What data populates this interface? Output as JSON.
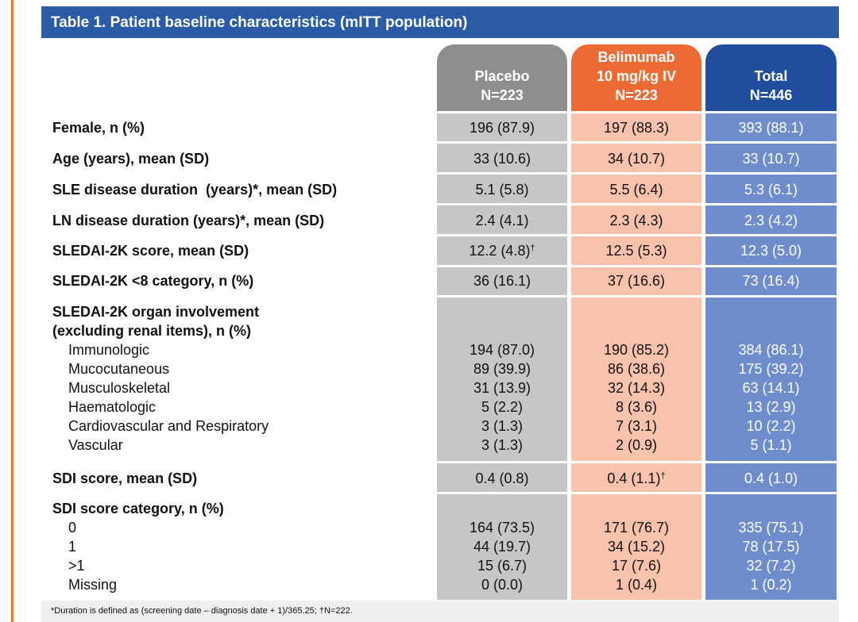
{
  "title": "Table 1. Patient baseline characteristics (mITT population)",
  "columns": {
    "placebo": {
      "line1": "Placebo",
      "line2": "N=223"
    },
    "belimumab": {
      "line0": "Belimumab",
      "line1": "10 mg/kg IV",
      "line2": "N=223"
    },
    "total": {
      "line1": "Total",
      "line2": "N=446"
    }
  },
  "rows": [
    {
      "label": "Female, n (%)",
      "placebo": "196 (87.9)",
      "belimumab": "197 (88.3)",
      "total": "393 (88.1)"
    },
    {
      "label": "Age (years), mean (SD)",
      "placebo": "33 (10.6)",
      "belimumab": "34 (10.7)",
      "total": "33 (10.7)"
    },
    {
      "label": "SLE disease duration  (years)*, mean (SD)",
      "placebo": "5.1 (5.8)",
      "belimumab": "5.5 (6.4)",
      "total": "5.3 (6.1)"
    },
    {
      "label": "LN disease duration (years)*, mean (SD)",
      "placebo": "2.4 (4.1)",
      "belimumab": "2.3 (4.3)",
      "total": "2.3 (4.2)"
    },
    {
      "label": "SLEDAI-2K score, mean (SD)",
      "placebo": "12.2 (4.8)",
      "placebo_mark": "†",
      "belimumab": "12.5 (5.3)",
      "total": "12.3 (5.0)"
    },
    {
      "label": "SLEDAI-2K <8 category, n (%)",
      "placebo": "36 (16.1)",
      "belimumab": "37 (16.6)",
      "total": "73 (16.4)"
    }
  ],
  "organ": {
    "label1": "SLEDAI-2K organ involvement",
    "label2": "(excluding renal items), n (%)",
    "items": [
      {
        "label": "Immunologic",
        "placebo": "194 (87.0)",
        "belimumab": "190 (85.2)",
        "total": "384 (86.1)"
      },
      {
        "label": "Mucocutaneous",
        "placebo": "89 (39.9)",
        "belimumab": "86 (38.6)",
        "total": "175 (39.2)"
      },
      {
        "label": "Musculoskeletal",
        "placebo": "31 (13.9)",
        "belimumab": "32 (14.3)",
        "total": "63 (14.1)"
      },
      {
        "label": "Haematologic",
        "placebo": "5 (2.2)",
        "belimumab": "8 (3.6)",
        "total": "13 (2.9)"
      },
      {
        "label": "Cardiovascular and Respiratory",
        "placebo": "3 (1.3)",
        "belimumab": "7 (3.1)",
        "total": "10 (2.2)"
      },
      {
        "label": "Vascular",
        "placebo": "3 (1.3)",
        "belimumab": "2 (0.9)",
        "total": "5 (1.1)"
      }
    ]
  },
  "sdi": {
    "label": "SDI score, mean (SD)",
    "placebo": "0.4 (0.8)",
    "belimumab": "0.4 (1.1)",
    "belimumab_mark": "†",
    "total": "0.4 (1.0)"
  },
  "sdi_category": {
    "label": "SDI score category, n (%)",
    "items": [
      {
        "label": "0",
        "placebo": "164 (73.5)",
        "belimumab": "171 (76.7)",
        "total": "335 (75.1)"
      },
      {
        "label": "1",
        "placebo": "44 (19.7)",
        "belimumab": "34 (15.2)",
        "total": "78 (17.5)"
      },
      {
        "label": ">1",
        "placebo": "15 (6.7)",
        "belimumab": "17 (7.6)",
        "total": "32 (7.2)"
      },
      {
        "label": "Missing",
        "placebo": "0 (0.0)",
        "belimumab": "1 (0.4)",
        "total": "1 (0.2)"
      }
    ]
  },
  "footnote": "*Duration is defined as (screening date – diagnosis date + 1)/365.25; †N=222.",
  "colors": {
    "title_bar": "#2b5aa7",
    "placebo_header": "#8e8e8e",
    "placebo_cell": "#c6c6c6",
    "belimumab_header": "#ec6a33",
    "belimumab_cell": "#f8c2ad",
    "total_header": "#214d9f",
    "total_cell": "#6f8dcc",
    "accent": "#e8743b"
  }
}
